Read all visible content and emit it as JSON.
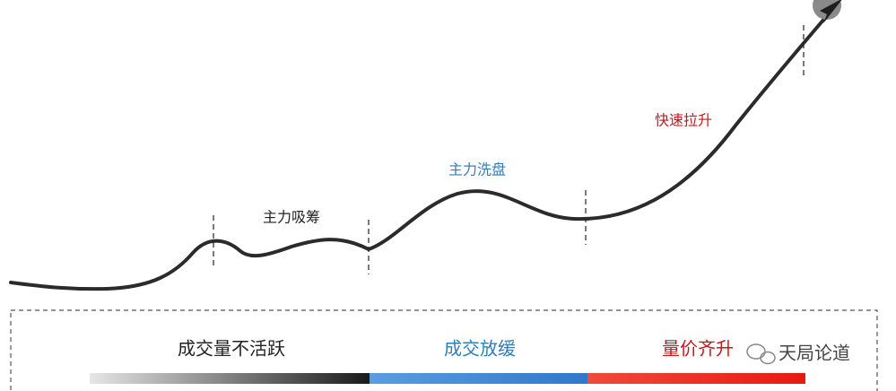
{
  "phases": [
    {
      "label": "主力吸筹"
    },
    {
      "label": "主力洗盘"
    },
    {
      "label": "快速拉升"
    }
  ],
  "volume": [
    {
      "label": "成交量不活跃"
    },
    {
      "label": "成交放缓"
    },
    {
      "label": "量价齐升"
    }
  ],
  "watermark": "天局论道"
}
